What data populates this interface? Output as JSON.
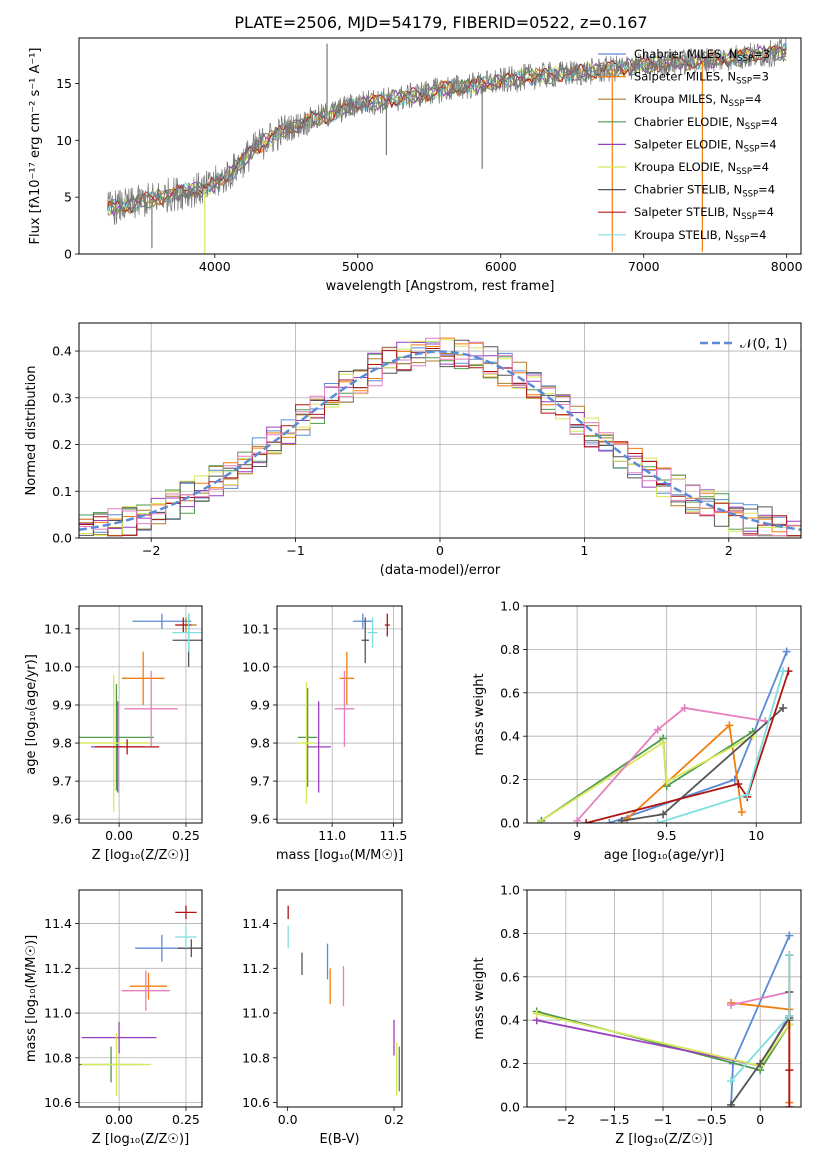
{
  "figure_title": "PLATE=2506, MJD=54179, FIBERID=0522, z=0.167",
  "colors": {
    "chabrier_miles": "#5b8bd6",
    "salpeter_miles": "#f07f0e",
    "kroupa_miles": "#b07d2a",
    "chabrier_elodie": "#4e9a4e",
    "salpeter_elodie": "#9a3fbf",
    "kroupa_elodie": "#d8e85a",
    "chabrier_stelib": "#555555",
    "salpeter_stelib": "#b01515",
    "kroupa_stelib": "#7fdede",
    "pink": "#e77fbf",
    "gauss": "#5b8bd6",
    "grid": "#b0b0b0"
  },
  "chart_data": [
    {
      "id": "spectrum",
      "type": "line",
      "title": "PLATE=2506, MJD=54179, FIBERID=0522, z=0.167",
      "xlabel": "wavelength [Angstrom, rest frame]",
      "ylabel": "Flux [fλ10⁻¹⁷ erg cm⁻² s⁻¹ A⁻¹]",
      "xlim": [
        3050,
        8100
      ],
      "ylim": [
        0,
        19
      ],
      "xticks": [
        4000,
        5000,
        6000,
        7000,
        8000
      ],
      "yticks": [
        0,
        5,
        10,
        15
      ],
      "grid": false,
      "legend_position": "right",
      "continuum": {
        "x": [
          3250,
          3400,
          3600,
          3800,
          3950,
          4100,
          4300,
          4500,
          4800,
          5000,
          5300,
          5600,
          5900,
          6200,
          6600,
          7000,
          7400,
          7800,
          8000
        ],
        "y": [
          4.0,
          4.3,
          5.0,
          5.5,
          5.8,
          7.0,
          9.5,
          11.0,
          12.3,
          13.2,
          13.7,
          14.5,
          15.0,
          15.6,
          16.0,
          16.6,
          17.0,
          17.5,
          17.8
        ]
      },
      "legend": [
        {
          "label": "Chabrier MILES, N",
          "sub": "SSP",
          "tail": "=3"
        },
        {
          "label": "Salpeter MILES, N",
          "sub": "SSP",
          "tail": "=3"
        },
        {
          "label": "Kroupa MILES, N",
          "sub": "SSP",
          "tail": "=4"
        },
        {
          "label": "Chabrier ELODIE, N",
          "sub": "SSP",
          "tail": "=4"
        },
        {
          "label": "Salpeter ELODIE, N",
          "sub": "SSP",
          "tail": "=4"
        },
        {
          "label": "Kroupa ELODIE, N",
          "sub": "SSP",
          "tail": "=4"
        },
        {
          "label": "Chabrier STELIB, N",
          "sub": "SSP",
          "tail": "=4"
        },
        {
          "label": "Salpeter STELIB, N",
          "sub": "SSP",
          "tail": "=4"
        },
        {
          "label": "Kroupa STELIB, N",
          "sub": "SSP",
          "tail": "=4"
        }
      ]
    },
    {
      "id": "residuals",
      "type": "line",
      "xlabel": "(data-model)/error",
      "ylabel": "Normed distribution",
      "xlim": [
        -2.5,
        2.5
      ],
      "ylim": [
        0,
        0.46
      ],
      "xticks": [
        -2,
        -1,
        0,
        1,
        2
      ],
      "yticks": [
        0.0,
        0.1,
        0.2,
        0.3,
        0.4
      ],
      "grid": true,
      "legend_position": "top-right",
      "legend": "𝒩(0, 1)",
      "bin_width": 0.1,
      "hist_count": 9
    },
    {
      "id": "age_vs_Z",
      "type": "scatter",
      "xlabel": "Z [log₁₀(Z/Z☉)]",
      "ylabel": "age  [log₁₀(age/yr)]",
      "xlim": [
        -0.15,
        0.31
      ],
      "ylim": [
        9.59,
        10.16
      ],
      "xticks": [
        0.0,
        0.25
      ],
      "xticklabels": [
        "0.00",
        "0.25"
      ],
      "yticks": [
        9.6,
        9.7,
        9.8,
        9.9,
        10.0,
        10.1
      ],
      "grid": true,
      "points": [
        {
          "x": 0.16,
          "y": 10.12,
          "xerr": 0.11,
          "yerr": 0.02,
          "c": "chabrier_miles"
        },
        {
          "x": 0.09,
          "y": 9.97,
          "xerr": 0.08,
          "yerr": 0.07,
          "c": "salpeter_miles"
        },
        {
          "x": 0.25,
          "y": 10.11,
          "xerr": 0.04,
          "yerr": 0.02,
          "c": "kroupa_miles"
        },
        {
          "x": -0.01,
          "y": 9.815,
          "xerr": 0.14,
          "yerr": 0.14,
          "c": "chabrier_elodie"
        },
        {
          "x": -0.005,
          "y": 9.79,
          "xerr": 0.1,
          "yerr": 0.12,
          "c": "salpeter_elodie"
        },
        {
          "x": -0.02,
          "y": 9.8,
          "xerr": 0.14,
          "yerr": 0.18,
          "c": "kroupa_elodie"
        },
        {
          "x": 0.26,
          "y": 10.07,
          "xerr": 0.06,
          "yerr": 0.07,
          "c": "chabrier_stelib"
        },
        {
          "x": 0.24,
          "y": 10.11,
          "xerr": 0.03,
          "yerr": 0.02,
          "c": "salpeter_stelib"
        },
        {
          "x": 0.26,
          "y": 10.09,
          "xerr": 0.06,
          "yerr": 0.05,
          "c": "kroupa_stelib"
        },
        {
          "x": 0.12,
          "y": 9.89,
          "xerr": 0.1,
          "yerr": 0.1,
          "c": "pink"
        },
        {
          "x": 0.03,
          "y": 9.79,
          "xerr": 0.12,
          "yerr": 0.02,
          "c": "salpeter_stelib"
        }
      ]
    },
    {
      "id": "age_vs_mass",
      "type": "scatter",
      "xlabel": "mass [log₁₀(M/M☉)]",
      "ylabel": "",
      "xlim": [
        10.55,
        11.57
      ],
      "ylim": [
        9.59,
        10.16
      ],
      "xticks": [
        11.0,
        11.5
      ],
      "xticklabels": [
        "11.0",
        "11.5"
      ],
      "yticks": [
        9.6,
        9.7,
        9.8,
        9.9,
        10.0,
        10.1
      ],
      "grid": true,
      "points": [
        {
          "x": 11.25,
          "y": 10.12,
          "xerr": 0.08,
          "yerr": 0.02,
          "c": "chabrier_miles"
        },
        {
          "x": 11.12,
          "y": 9.97,
          "xerr": 0.06,
          "yerr": 0.07,
          "c": "salpeter_miles"
        },
        {
          "x": 10.8,
          "y": 9.815,
          "xerr": 0.08,
          "yerr": 0.13,
          "c": "chabrier_elodie"
        },
        {
          "x": 10.89,
          "y": 9.79,
          "xerr": 0.1,
          "yerr": 0.12,
          "c": "salpeter_elodie"
        },
        {
          "x": 10.79,
          "y": 9.8,
          "xerr": 0.07,
          "yerr": 0.16,
          "c": "kroupa_elodie"
        },
        {
          "x": 11.27,
          "y": 10.07,
          "xerr": 0.03,
          "yerr": 0.06,
          "c": "chabrier_stelib"
        },
        {
          "x": 11.45,
          "y": 10.11,
          "xerr": 0.02,
          "yerr": 0.03,
          "c": "salpeter_stelib"
        },
        {
          "x": 11.33,
          "y": 10.09,
          "xerr": 0.04,
          "yerr": 0.04,
          "c": "kroupa_stelib"
        },
        {
          "x": 11.1,
          "y": 9.89,
          "xerr": 0.08,
          "yerr": 0.1,
          "c": "pink"
        }
      ]
    },
    {
      "id": "weight_vs_age",
      "type": "line",
      "xlabel": "age  [log₁₀(age/yr)]",
      "ylabel": "mass weight",
      "xlim": [
        8.72,
        10.25
      ],
      "ylim": [
        0,
        1.0
      ],
      "xticks": [
        9.0,
        9.5,
        10.0
      ],
      "yticks": [
        0.0,
        0.2,
        0.4,
        0.6,
        0.8,
        1.0
      ],
      "grid": true,
      "series": [
        {
          "c": "chabrier_miles",
          "x": [
            9.18,
            9.88,
            10.17
          ],
          "y": [
            0.0,
            0.2,
            0.79
          ]
        },
        {
          "c": "salpeter_miles",
          "x": [
            9.28,
            9.85,
            9.92
          ],
          "y": [
            0.02,
            0.45,
            0.05
          ]
        },
        {
          "c": "chabrier_elodie",
          "x": [
            8.8,
            9.48,
            9.5,
            9.98
          ],
          "y": [
            0.01,
            0.39,
            0.17,
            0.42
          ]
        },
        {
          "c": "kroupa_elodie",
          "x": [
            8.78,
            9.48,
            9.5,
            9.98
          ],
          "y": [
            0.0,
            0.37,
            0.19,
            0.4
          ]
        },
        {
          "c": "pink",
          "x": [
            9.0,
            9.45,
            9.6,
            10.05
          ],
          "y": [
            0.01,
            0.43,
            0.53,
            0.47
          ]
        },
        {
          "c": "chabrier_stelib",
          "x": [
            9.25,
            9.48,
            10.15
          ],
          "y": [
            0.01,
            0.04,
            0.53
          ]
        },
        {
          "c": "salpeter_stelib",
          "x": [
            9.05,
            9.9,
            9.95,
            10.18
          ],
          "y": [
            0.0,
            0.18,
            0.12,
            0.7
          ]
        },
        {
          "c": "kroupa_stelib",
          "x": [
            9.45,
            9.95,
            10.15
          ],
          "y": [
            0.0,
            0.13,
            0.7
          ]
        }
      ]
    },
    {
      "id": "mass_vs_Z",
      "type": "scatter",
      "xlabel": "Z [log₁₀(Z/Z☉)]",
      "ylabel": "mass [log₁₀(M/M☉)]",
      "xlim": [
        -0.15,
        0.31
      ],
      "ylim": [
        10.58,
        11.55
      ],
      "xticks": [
        0.0,
        0.25
      ],
      "xticklabels": [
        "0.00",
        "0.25"
      ],
      "yticks": [
        10.6,
        10.8,
        11.0,
        11.2,
        11.4
      ],
      "grid": true,
      "points": [
        {
          "x": 0.16,
          "y": 11.29,
          "xerr": 0.1,
          "yerr": 0.06,
          "c": "chabrier_miles"
        },
        {
          "x": 0.11,
          "y": 11.12,
          "xerr": 0.07,
          "yerr": 0.06,
          "c": "salpeter_miles"
        },
        {
          "x": -0.03,
          "y": 10.77,
          "xerr": 0.12,
          "yerr": 0.08,
          "c": "chabrier_elodie"
        },
        {
          "x": 0.0,
          "y": 10.89,
          "xerr": 0.14,
          "yerr": 0.07,
          "c": "salpeter_elodie"
        },
        {
          "x": -0.01,
          "y": 10.77,
          "xerr": 0.13,
          "yerr": 0.14,
          "c": "kroupa_elodie"
        },
        {
          "x": 0.27,
          "y": 11.29,
          "xerr": 0.05,
          "yerr": 0.04,
          "c": "chabrier_stelib"
        },
        {
          "x": 0.25,
          "y": 11.45,
          "xerr": 0.04,
          "yerr": 0.03,
          "c": "salpeter_stelib"
        },
        {
          "x": 0.25,
          "y": 11.34,
          "xerr": 0.04,
          "yerr": 0.05,
          "c": "kroupa_stelib"
        },
        {
          "x": 0.1,
          "y": 11.1,
          "xerr": 0.09,
          "yerr": 0.09,
          "c": "pink"
        }
      ]
    },
    {
      "id": "mass_vs_ebv",
      "type": "scatter",
      "xlabel": "E(B-V)",
      "ylabel": "",
      "xlim": [
        -0.02,
        0.215
      ],
      "ylim": [
        10.58,
        11.55
      ],
      "xticks": [
        0.0,
        0.2
      ],
      "xticklabels": [
        "0.0",
        "0.2"
      ],
      "yticks": [
        10.6,
        10.8,
        11.0,
        11.2,
        11.4
      ],
      "grid": false,
      "points": [
        {
          "x": 0.001,
          "y": 11.45,
          "xerr": 0,
          "yerr": 0.03,
          "c": "salpeter_stelib"
        },
        {
          "x": 0.001,
          "y": 11.34,
          "xerr": 0,
          "yerr": 0.05,
          "c": "kroupa_stelib"
        },
        {
          "x": 0.027,
          "y": 11.22,
          "xerr": 0,
          "yerr": 0.05,
          "c": "chabrier_stelib"
        },
        {
          "x": 0.075,
          "y": 11.23,
          "xerr": 0,
          "yerr": 0.08,
          "c": "chabrier_miles"
        },
        {
          "x": 0.08,
          "y": 11.12,
          "xerr": 0,
          "yerr": 0.08,
          "c": "salpeter_miles"
        },
        {
          "x": 0.105,
          "y": 11.12,
          "xerr": 0,
          "yerr": 0.09,
          "c": "pink"
        },
        {
          "x": 0.2,
          "y": 10.89,
          "xerr": 0,
          "yerr": 0.08,
          "c": "salpeter_elodie"
        },
        {
          "x": 0.205,
          "y": 10.75,
          "xerr": 0,
          "yerr": 0.12,
          "c": "kroupa_elodie"
        },
        {
          "x": 0.21,
          "y": 10.75,
          "xerr": 0,
          "yerr": 0.1,
          "c": "chabrier_elodie"
        }
      ]
    },
    {
      "id": "weight_vs_Z",
      "type": "line",
      "xlabel": "Z [log₁₀(Z/Z☉)]",
      "ylabel": "mass weight",
      "xlim": [
        -2.4,
        0.42
      ],
      "ylim": [
        0,
        1.0
      ],
      "xticks": [
        -2.0,
        -1.5,
        -1.0,
        -0.5,
        0.0
      ],
      "yticks": [
        0.0,
        0.2,
        0.4,
        0.6,
        0.8,
        1.0
      ],
      "grid": true,
      "series": [
        {
          "c": "chabrier_miles",
          "x": [
            -0.3,
            -0.28,
            0.3
          ],
          "y": [
            0.0,
            0.2,
            0.79
          ]
        },
        {
          "c": "salpeter_miles",
          "x": [
            -0.3,
            0.3,
            0.3
          ],
          "y": [
            0.48,
            0.45,
            0.02
          ]
        },
        {
          "c": "chabrier_elodie",
          "x": [
            -2.3,
            0.0,
            0.3,
            0.3
          ],
          "y": [
            0.44,
            0.17,
            0.38,
            0.4
          ]
        },
        {
          "c": "salpeter_elodie",
          "x": [
            -2.3,
            0.0,
            0.3
          ],
          "y": [
            0.4,
            0.19,
            0.42
          ]
        },
        {
          "c": "kroupa_elodie",
          "x": [
            -2.3,
            0.0,
            0.3
          ],
          "y": [
            0.43,
            0.19,
            0.38
          ]
        },
        {
          "c": "pink",
          "x": [
            -0.3,
            0.3
          ],
          "y": [
            0.47,
            0.53
          ]
        },
        {
          "c": "chabrier_stelib",
          "x": [
            -0.3,
            0.0,
            0.3,
            0.3
          ],
          "y": [
            0.01,
            0.2,
            0.41,
            0.53
          ]
        },
        {
          "c": "salpeter_stelib",
          "x": [
            0.3,
            0.3,
            0.3
          ],
          "y": [
            0.0,
            0.17,
            0.7
          ]
        },
        {
          "c": "kroupa_stelib",
          "x": [
            -0.3,
            0.3,
            0.3
          ],
          "y": [
            0.12,
            0.42,
            0.7
          ]
        }
      ]
    }
  ]
}
